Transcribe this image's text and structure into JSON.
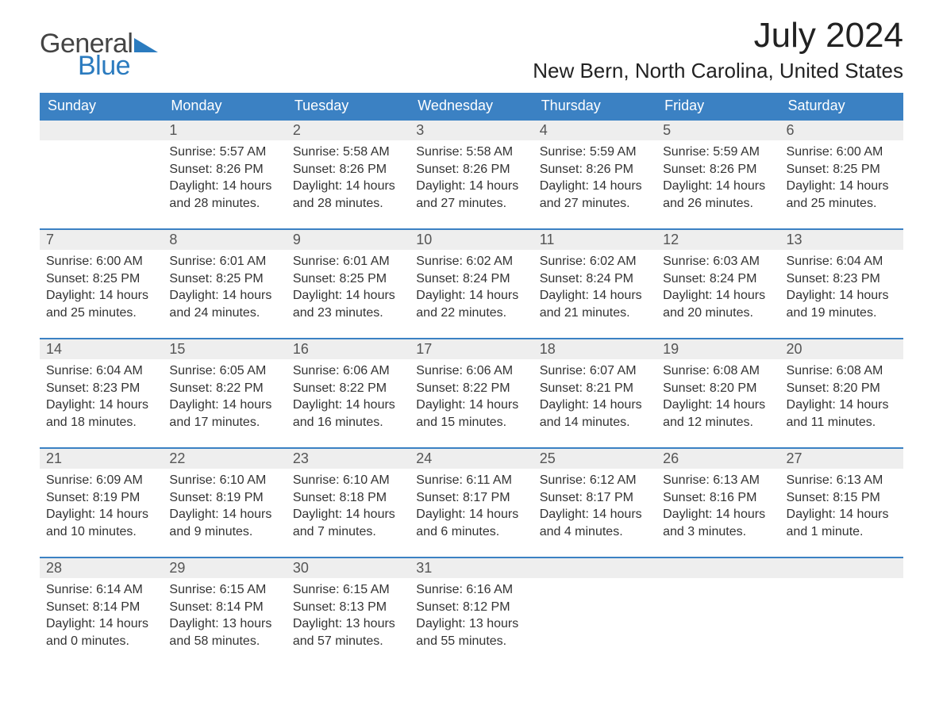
{
  "logo": {
    "word1": "General",
    "word2": "Blue",
    "word1_color": "#444444",
    "word2_color": "#2b7bbf",
    "triangle_color": "#2b7bbf"
  },
  "title": "July 2024",
  "location": "New Bern, North Carolina, United States",
  "colors": {
    "header_bg": "#3b81c3",
    "header_text": "#ffffff",
    "row_accent": "#3b81c3",
    "daynum_bg": "#eeeeee",
    "body_text": "#333333",
    "page_bg": "#ffffff"
  },
  "typography": {
    "title_fontsize": 44,
    "location_fontsize": 26,
    "header_fontsize": 18,
    "cell_fontsize": 16
  },
  "field_labels": {
    "sunrise": "Sunrise:",
    "sunset": "Sunset:",
    "daylight": "Daylight:"
  },
  "day_headers": [
    "Sunday",
    "Monday",
    "Tuesday",
    "Wednesday",
    "Thursday",
    "Friday",
    "Saturday"
  ],
  "layout": {
    "columns": 7,
    "weeks": 5,
    "start_offset": 1
  },
  "weeks": [
    [
      null,
      {
        "n": "1",
        "sunrise": "5:57 AM",
        "sunset": "8:26 PM",
        "daylight": "14 hours and 28 minutes."
      },
      {
        "n": "2",
        "sunrise": "5:58 AM",
        "sunset": "8:26 PM",
        "daylight": "14 hours and 28 minutes."
      },
      {
        "n": "3",
        "sunrise": "5:58 AM",
        "sunset": "8:26 PM",
        "daylight": "14 hours and 27 minutes."
      },
      {
        "n": "4",
        "sunrise": "5:59 AM",
        "sunset": "8:26 PM",
        "daylight": "14 hours and 27 minutes."
      },
      {
        "n": "5",
        "sunrise": "5:59 AM",
        "sunset": "8:26 PM",
        "daylight": "14 hours and 26 minutes."
      },
      {
        "n": "6",
        "sunrise": "6:00 AM",
        "sunset": "8:25 PM",
        "daylight": "14 hours and 25 minutes."
      }
    ],
    [
      {
        "n": "7",
        "sunrise": "6:00 AM",
        "sunset": "8:25 PM",
        "daylight": "14 hours and 25 minutes."
      },
      {
        "n": "8",
        "sunrise": "6:01 AM",
        "sunset": "8:25 PM",
        "daylight": "14 hours and 24 minutes."
      },
      {
        "n": "9",
        "sunrise": "6:01 AM",
        "sunset": "8:25 PM",
        "daylight": "14 hours and 23 minutes."
      },
      {
        "n": "10",
        "sunrise": "6:02 AM",
        "sunset": "8:24 PM",
        "daylight": "14 hours and 22 minutes."
      },
      {
        "n": "11",
        "sunrise": "6:02 AM",
        "sunset": "8:24 PM",
        "daylight": "14 hours and 21 minutes."
      },
      {
        "n": "12",
        "sunrise": "6:03 AM",
        "sunset": "8:24 PM",
        "daylight": "14 hours and 20 minutes."
      },
      {
        "n": "13",
        "sunrise": "6:04 AM",
        "sunset": "8:23 PM",
        "daylight": "14 hours and 19 minutes."
      }
    ],
    [
      {
        "n": "14",
        "sunrise": "6:04 AM",
        "sunset": "8:23 PM",
        "daylight": "14 hours and 18 minutes."
      },
      {
        "n": "15",
        "sunrise": "6:05 AM",
        "sunset": "8:22 PM",
        "daylight": "14 hours and 17 minutes."
      },
      {
        "n": "16",
        "sunrise": "6:06 AM",
        "sunset": "8:22 PM",
        "daylight": "14 hours and 16 minutes."
      },
      {
        "n": "17",
        "sunrise": "6:06 AM",
        "sunset": "8:22 PM",
        "daylight": "14 hours and 15 minutes."
      },
      {
        "n": "18",
        "sunrise": "6:07 AM",
        "sunset": "8:21 PM",
        "daylight": "14 hours and 14 minutes."
      },
      {
        "n": "19",
        "sunrise": "6:08 AM",
        "sunset": "8:20 PM",
        "daylight": "14 hours and 12 minutes."
      },
      {
        "n": "20",
        "sunrise": "6:08 AM",
        "sunset": "8:20 PM",
        "daylight": "14 hours and 11 minutes."
      }
    ],
    [
      {
        "n": "21",
        "sunrise": "6:09 AM",
        "sunset": "8:19 PM",
        "daylight": "14 hours and 10 minutes."
      },
      {
        "n": "22",
        "sunrise": "6:10 AM",
        "sunset": "8:19 PM",
        "daylight": "14 hours and 9 minutes."
      },
      {
        "n": "23",
        "sunrise": "6:10 AM",
        "sunset": "8:18 PM",
        "daylight": "14 hours and 7 minutes."
      },
      {
        "n": "24",
        "sunrise": "6:11 AM",
        "sunset": "8:17 PM",
        "daylight": "14 hours and 6 minutes."
      },
      {
        "n": "25",
        "sunrise": "6:12 AM",
        "sunset": "8:17 PM",
        "daylight": "14 hours and 4 minutes."
      },
      {
        "n": "26",
        "sunrise": "6:13 AM",
        "sunset": "8:16 PM",
        "daylight": "14 hours and 3 minutes."
      },
      {
        "n": "27",
        "sunrise": "6:13 AM",
        "sunset": "8:15 PM",
        "daylight": "14 hours and 1 minute."
      }
    ],
    [
      {
        "n": "28",
        "sunrise": "6:14 AM",
        "sunset": "8:14 PM",
        "daylight": "14 hours and 0 minutes."
      },
      {
        "n": "29",
        "sunrise": "6:15 AM",
        "sunset": "8:14 PM",
        "daylight": "13 hours and 58 minutes."
      },
      {
        "n": "30",
        "sunrise": "6:15 AM",
        "sunset": "8:13 PM",
        "daylight": "13 hours and 57 minutes."
      },
      {
        "n": "31",
        "sunrise": "6:16 AM",
        "sunset": "8:12 PM",
        "daylight": "13 hours and 55 minutes."
      },
      null,
      null,
      null
    ]
  ]
}
